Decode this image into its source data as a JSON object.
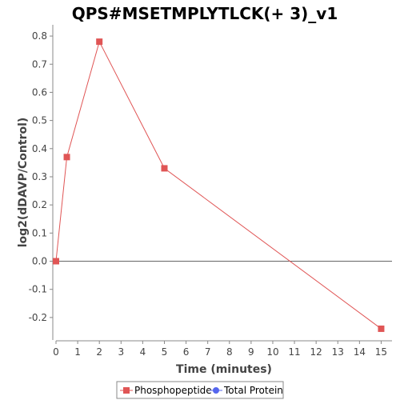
{
  "chart_data": {
    "type": "line",
    "title": "QPS#MSETMPLYTLCK(+ 3)_v1",
    "xlabel": "Time (minutes)",
    "ylabel": "log2(dDAVP/Control)",
    "xlim": [
      0,
      15.5
    ],
    "ylim": [
      -0.28,
      0.84
    ],
    "xticks": [
      0,
      1,
      2,
      3,
      4,
      5,
      6,
      7,
      8,
      9,
      10,
      11,
      12,
      13,
      14,
      15
    ],
    "yticks": [
      -0.2,
      -0.1,
      0.0,
      0.1,
      0.2,
      0.3,
      0.4,
      0.5,
      0.6,
      0.7,
      0.8
    ],
    "ytick_labels": [
      "-0.2",
      "-0.1",
      "0.0",
      "0.1",
      "0.2",
      "0.3",
      "0.4",
      "0.5",
      "0.6",
      "0.7",
      "0.8"
    ],
    "zero_line": true,
    "grid": false,
    "legend_position": "bottom",
    "series": [
      {
        "name": "Phosphopeptide",
        "color": "#e05555",
        "marker": "square",
        "x": [
          0,
          0.5,
          2,
          5,
          15
        ],
        "y": [
          0.0,
          0.37,
          0.78,
          0.33,
          -0.24
        ]
      },
      {
        "name": "Total Protein",
        "color": "#5566ee",
        "marker": "circle",
        "x": [],
        "y": []
      }
    ]
  }
}
